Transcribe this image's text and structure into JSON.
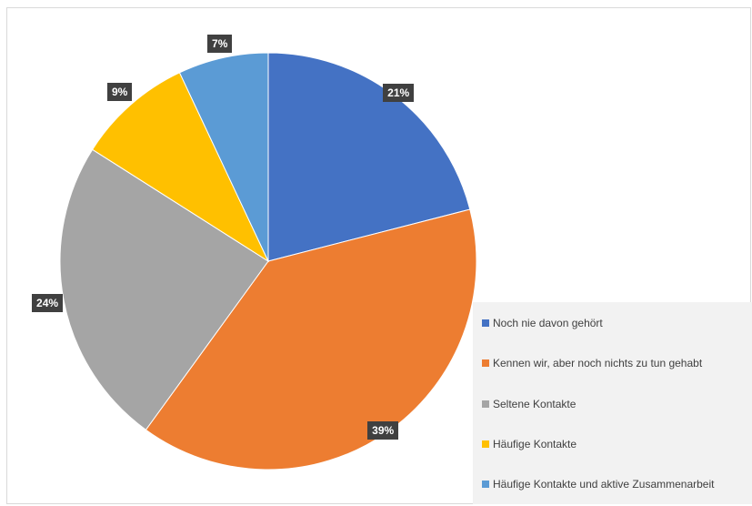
{
  "chart_data": {
    "type": "pie",
    "categories": [
      "Noch nie davon gehört",
      "Kennen wir, aber noch nichts zu tun gehabt",
      "Seltene Kontakte",
      "Häufige Kontakte",
      "Häufige Kontakte und aktive Zusammenarbeit"
    ],
    "values": [
      21,
      39,
      24,
      9,
      7
    ],
    "labels": [
      "21%",
      "39%",
      "24%",
      "9%",
      "7%"
    ],
    "colors": [
      "#4472c4",
      "#ed7d31",
      "#a5a5a5",
      "#ffc000",
      "#5b9bd5"
    ],
    "legend_position": "right"
  }
}
